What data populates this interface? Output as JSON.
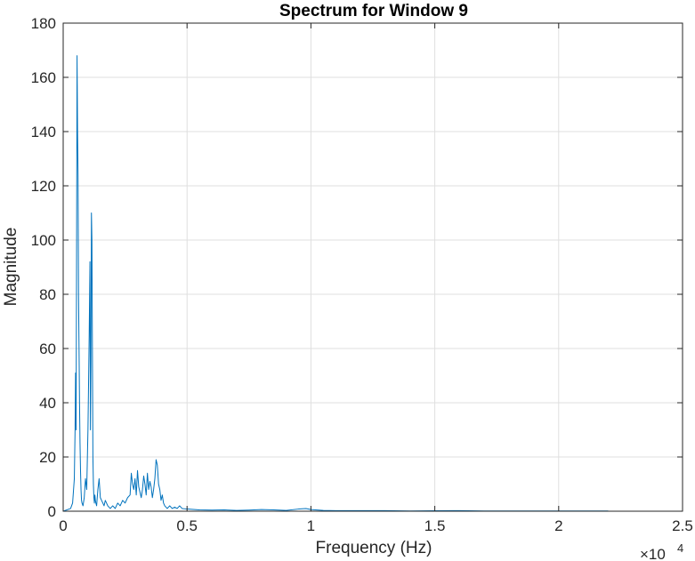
{
  "chart_data": {
    "type": "line",
    "title": "Spectrum for Window 9",
    "xlabel": "Frequency (Hz)",
    "ylabel": "Magnitude",
    "x_exponent_label": "×10",
    "x_exponent_power": "4",
    "xlim": [
      0,
      25000
    ],
    "ylim": [
      0,
      180
    ],
    "xticks": [
      0,
      5000,
      10000,
      15000,
      20000,
      25000
    ],
    "xtick_labels": [
      "0",
      "0.5",
      "1",
      "1.5",
      "2",
      "2.5"
    ],
    "yticks": [
      0,
      20,
      40,
      60,
      80,
      100,
      120,
      140,
      160,
      180
    ],
    "ytick_labels": [
      "0",
      "20",
      "40",
      "60",
      "80",
      "100",
      "120",
      "140",
      "160",
      "180"
    ],
    "grid": true,
    "series": [
      {
        "color": "#0072BD",
        "x": [
          0,
          300,
          380,
          450,
          480,
          500,
          520,
          540,
          560,
          580,
          600,
          620,
          640,
          660,
          680,
          700,
          720,
          740,
          760,
          800,
          850,
          900,
          950,
          1000,
          1050,
          1080,
          1100,
          1120,
          1140,
          1160,
          1180,
          1200,
          1220,
          1240,
          1260,
          1280,
          1300,
          1320,
          1350,
          1400,
          1450,
          1500,
          1550,
          1600,
          1650,
          1700,
          1750,
          1800,
          1900,
          2000,
          2100,
          2200,
          2300,
          2400,
          2500,
          2600,
          2700,
          2750,
          2800,
          2850,
          2900,
          2950,
          3000,
          3050,
          3100,
          3150,
          3200,
          3250,
          3300,
          3350,
          3400,
          3450,
          3500,
          3550,
          3600,
          3650,
          3700,
          3750,
          3800,
          3850,
          3900,
          3950,
          4000,
          4050,
          4100,
          4200,
          4300,
          4400,
          4500,
          4600,
          4700,
          4800,
          5000,
          5500,
          6000,
          6500,
          7000,
          7500,
          8000,
          8500,
          9000,
          9500,
          9800,
          10000,
          10500,
          11000,
          12000,
          13000,
          14000,
          15000,
          16000,
          17000,
          18000,
          19000,
          20000,
          21000,
          22000
        ],
        "y": [
          0,
          1,
          3,
          12,
          30,
          51,
          30,
          90,
          168,
          140,
          124,
          80,
          60,
          40,
          25,
          15,
          8,
          4,
          3,
          2,
          5,
          12,
          8,
          30,
          65,
          92,
          30,
          55,
          110,
          100,
          60,
          20,
          10,
          5,
          3,
          6,
          4,
          3,
          2,
          8,
          12,
          5,
          4,
          3,
          2,
          4,
          3,
          2,
          1,
          2,
          1,
          3,
          2,
          4,
          3,
          5,
          6,
          14,
          10,
          8,
          12,
          6,
          15,
          9,
          7,
          5,
          8,
          13,
          10,
          6,
          14,
          8,
          11,
          9,
          5,
          8,
          12,
          19,
          17,
          10,
          8,
          4,
          6,
          3,
          2,
          1,
          2,
          1,
          1.5,
          1,
          2,
          1,
          0.8,
          0.5,
          0.4,
          0.5,
          0.3,
          0.4,
          0.6,
          0.5,
          0.3,
          0.8,
          1,
          0.6,
          0.3,
          0.2,
          0.2,
          0.2,
          0.1,
          0.15,
          0.2,
          0.1,
          0.1,
          0.1,
          0.1,
          0.1,
          0.1
        ]
      }
    ]
  }
}
